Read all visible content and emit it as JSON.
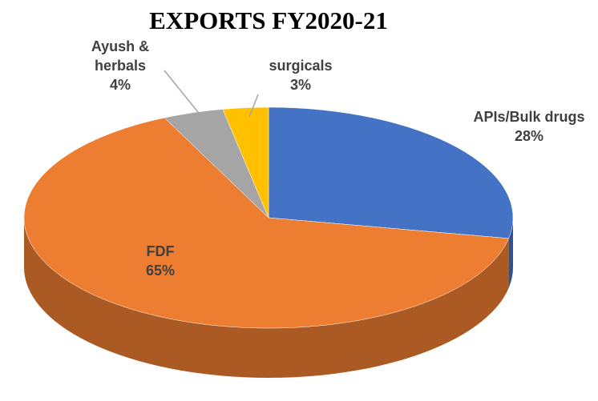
{
  "chart_data": {
    "type": "pie",
    "title": "EXPORTS FY2020-21",
    "categories": [
      "APIs/Bulk drugs",
      "FDF",
      "Ayush & herbals",
      "surgicals"
    ],
    "values": [
      28,
      65,
      4,
      3
    ],
    "value_labels": [
      "28%",
      "65%",
      "4%",
      "3%"
    ],
    "colors": [
      "#4472c4",
      "#ed7d31",
      "#a5a5a5",
      "#ffc000"
    ]
  }
}
